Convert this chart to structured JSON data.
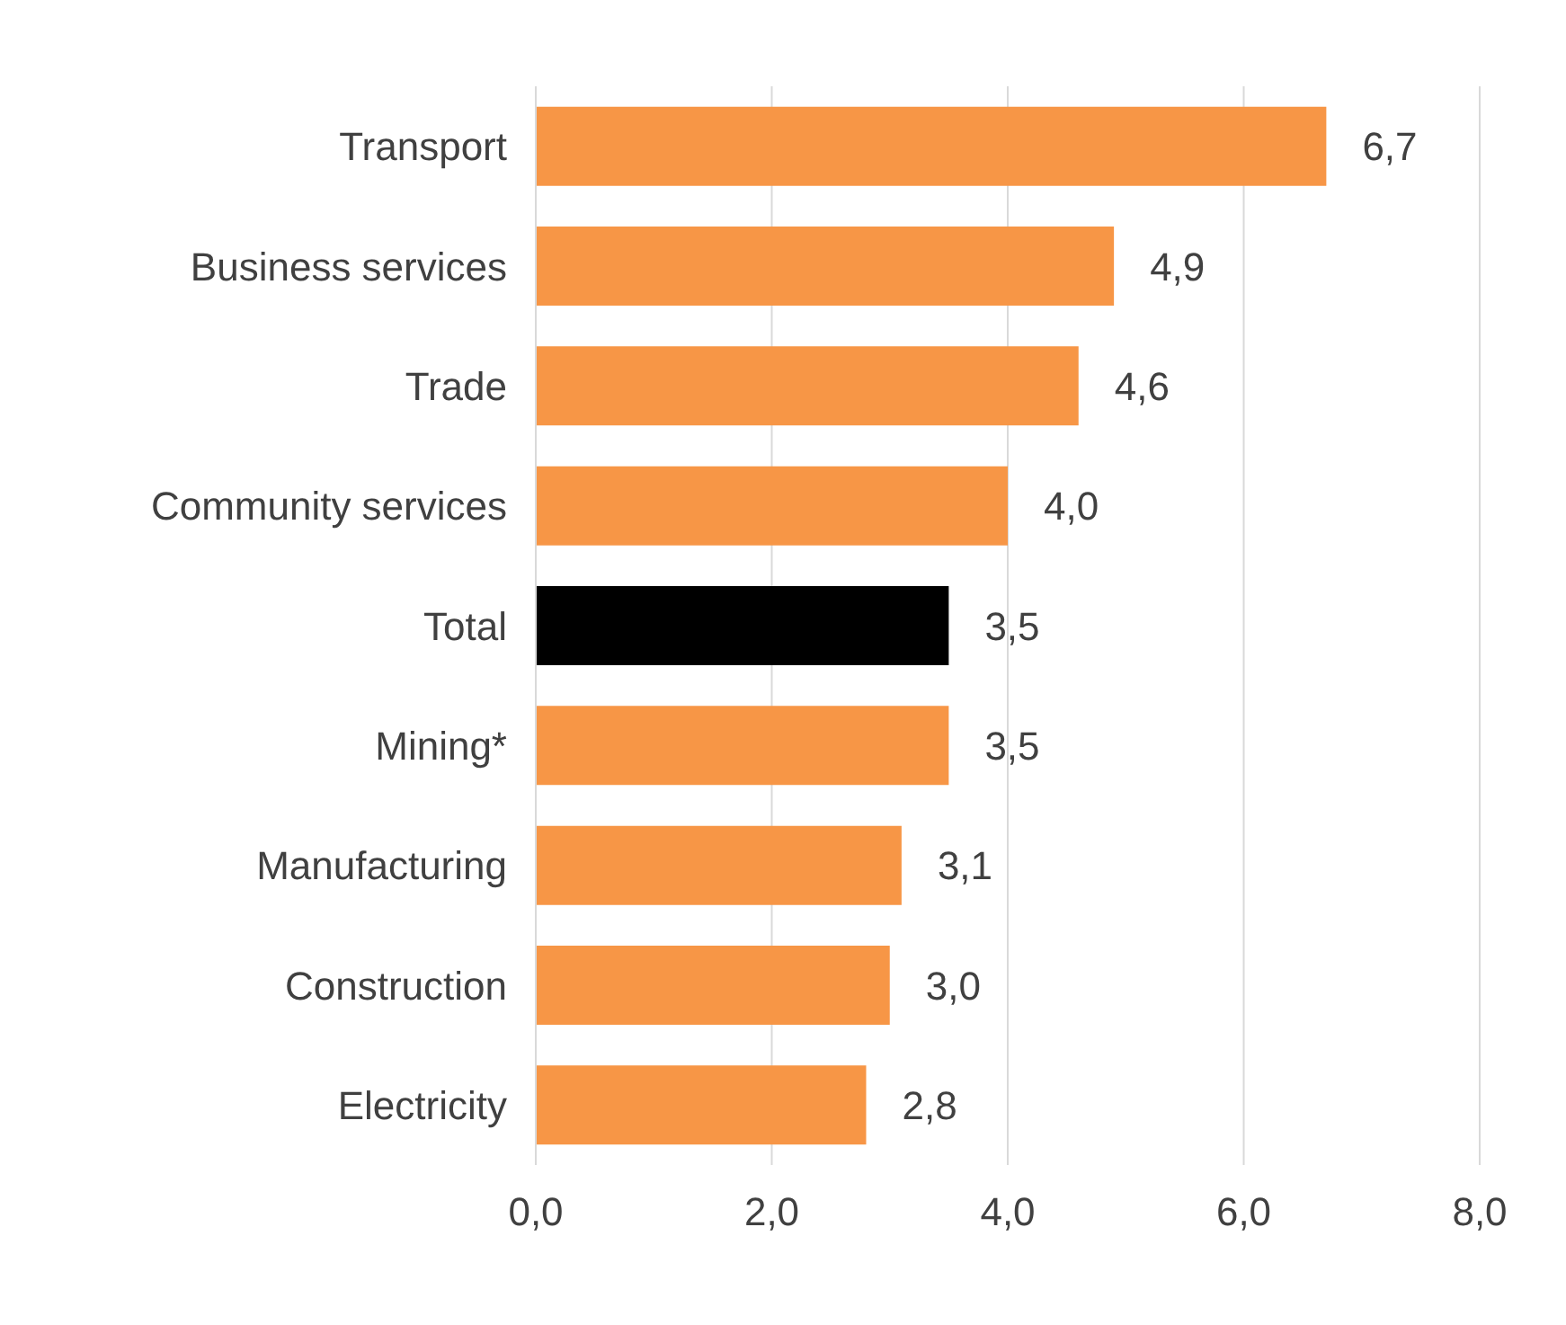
{
  "chart_data": {
    "type": "bar",
    "orientation": "horizontal",
    "categories": [
      "Transport",
      "Business services",
      "Trade",
      "Community services",
      "Total",
      "Mining*",
      "Manufacturing",
      "Construction",
      "Electricity"
    ],
    "values": [
      6.7,
      4.9,
      4.6,
      4.0,
      3.5,
      3.5,
      3.1,
      3.0,
      2.8
    ],
    "colors": [
      "#f79646",
      "#f79646",
      "#f79646",
      "#f79646",
      "#000000",
      "#f79646",
      "#f79646",
      "#f79646",
      "#f79646"
    ],
    "value_labels": [
      "6,7",
      "4,9",
      "4,6",
      "4,0",
      "3,5",
      "3,5",
      "3,1",
      "3,0",
      "2,8"
    ],
    "xlim": [
      0,
      8
    ],
    "xticks": [
      {
        "value": 0,
        "label": "0,0"
      },
      {
        "value": 2,
        "label": "2,0"
      },
      {
        "value": 4,
        "label": "4,0"
      },
      {
        "value": 6,
        "label": "6,0"
      },
      {
        "value": 8,
        "label": "8,0"
      }
    ],
    "grid": "x"
  }
}
